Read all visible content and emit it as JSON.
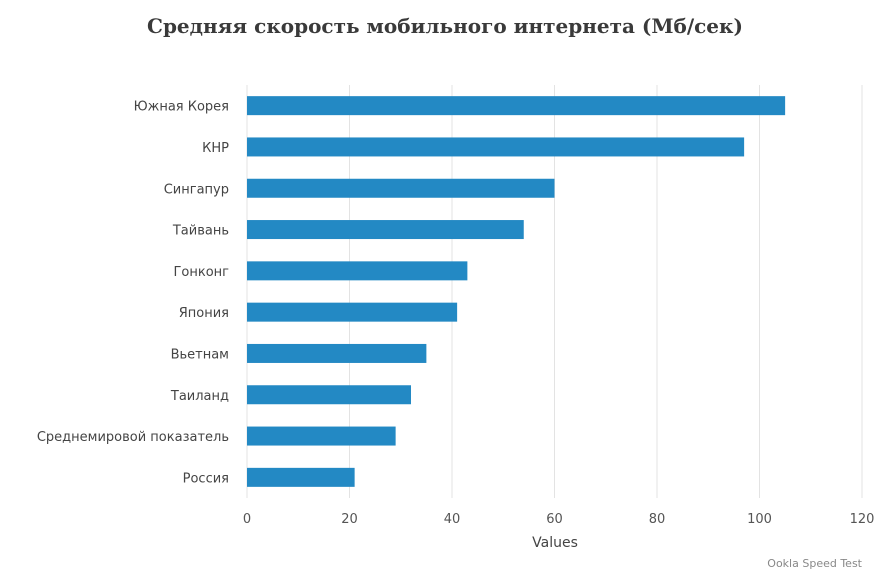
{
  "chart_data": {
    "type": "bar",
    "orientation": "horizontal",
    "title": "Средняя скорость мобильного интернета (Мб/сек)",
    "categories": [
      "Южная Корея",
      "КНР",
      "Сингапур",
      "Тайвань",
      "Гонконг",
      "Япония",
      "Вьетнам",
      "Таиланд",
      "Среднемировой показатель",
      "Россия"
    ],
    "values": [
      105,
      97,
      60,
      54,
      43,
      41,
      35,
      32,
      29,
      21
    ],
    "xlabel": "Values",
    "ylabel": "",
    "xlim": [
      0,
      120
    ],
    "xticks": [
      0,
      20,
      40,
      60,
      80,
      100,
      120
    ],
    "grid": "vertical",
    "legend": "none",
    "bar_color": "#2389c4",
    "credit": "Ookla Speed Test"
  }
}
